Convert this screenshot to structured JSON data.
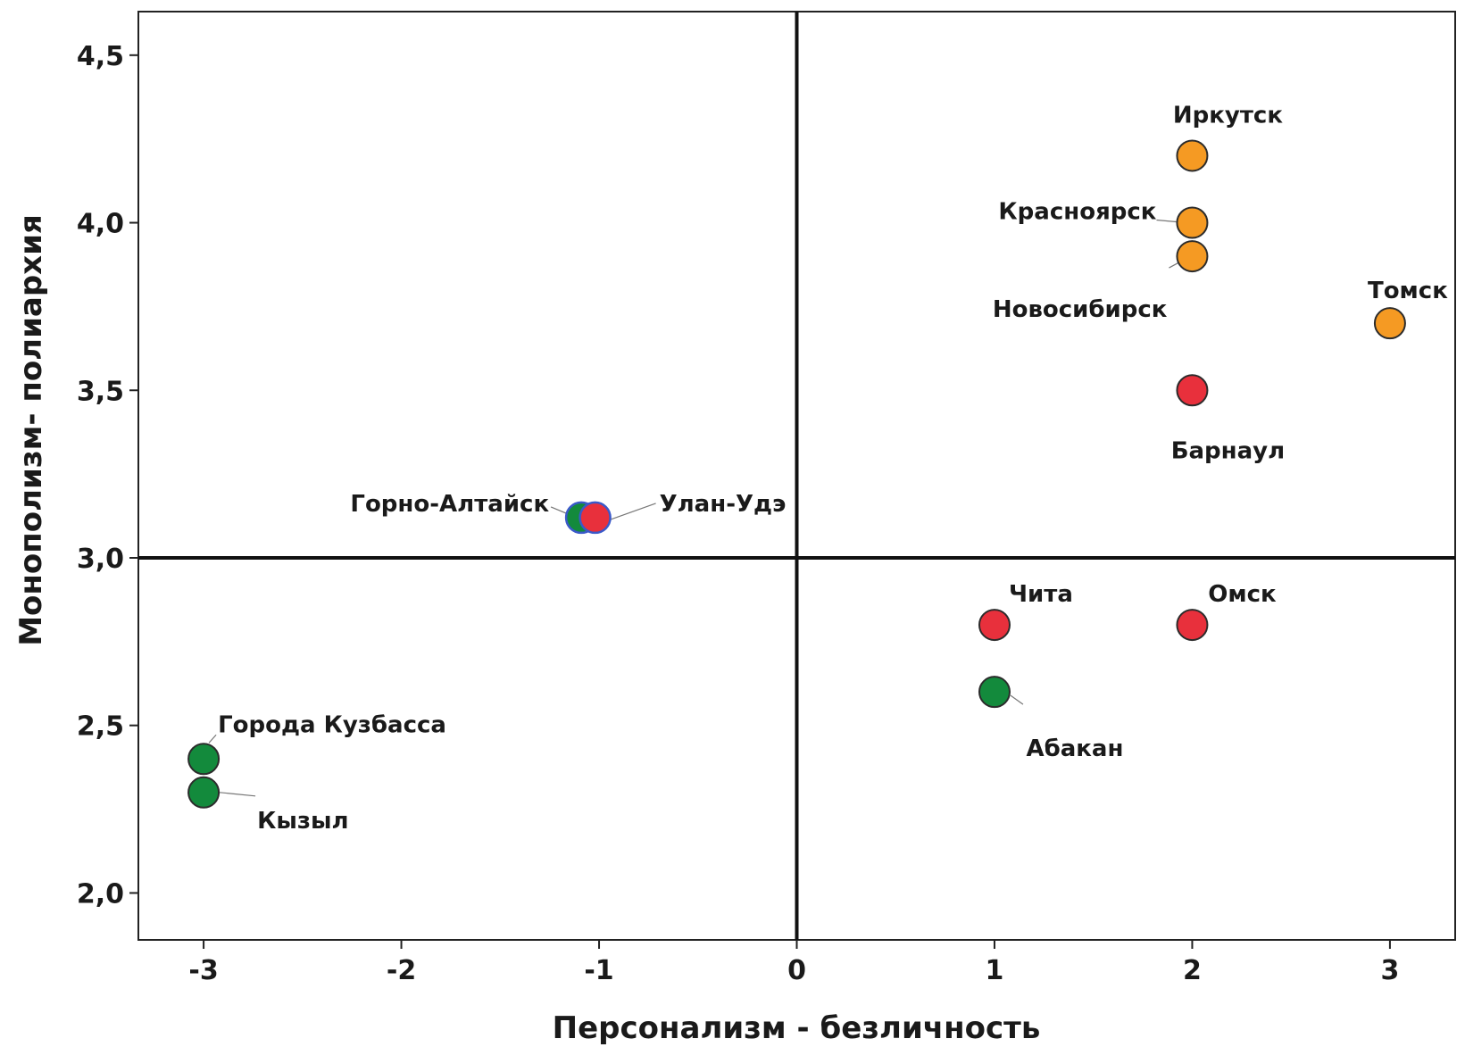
{
  "chart_data": {
    "type": "scatter",
    "xlabel": "Персонализм - безличность",
    "ylabel": "Монополизм- полиархия",
    "xlim": [
      -3.33,
      3.33
    ],
    "ylim": [
      1.86,
      4.63
    ],
    "x_ticks": [
      {
        "value": -3,
        "label": "-3"
      },
      {
        "value": -2,
        "label": "-2"
      },
      {
        "value": -1,
        "label": "-1"
      },
      {
        "value": 0,
        "label": "0"
      },
      {
        "value": 1,
        "label": "1"
      },
      {
        "value": 2,
        "label": "2"
      },
      {
        "value": 3,
        "label": "3"
      }
    ],
    "y_ticks": [
      {
        "value": 2.0,
        "label": "2,0"
      },
      {
        "value": 2.5,
        "label": "2,5"
      },
      {
        "value": 3.0,
        "label": "3,0"
      },
      {
        "value": 3.5,
        "label": "3,5"
      },
      {
        "value": 4.0,
        "label": "4,0"
      },
      {
        "value": 4.5,
        "label": "4,5"
      }
    ],
    "reference_lines": {
      "x": 0,
      "y": 3.0
    },
    "grid": false,
    "colors": {
      "orange": "#f59a23",
      "red": "#e8303c",
      "green": "#138a3c"
    },
    "points": [
      {
        "label": "Иркутск",
        "x": 2,
        "y": 4.2,
        "color": "orange"
      },
      {
        "label": "Красноярск",
        "x": 2,
        "y": 4.0,
        "color": "orange"
      },
      {
        "label": "Новосибирск",
        "x": 2,
        "y": 3.9,
        "color": "orange"
      },
      {
        "label": "Томск",
        "x": 3,
        "y": 3.7,
        "color": "orange"
      },
      {
        "label": "Барнаул",
        "x": 2,
        "y": 3.5,
        "color": "red"
      },
      {
        "label": "Горно-Алтайск",
        "x": -1.09,
        "y": 3.12,
        "color": "green"
      },
      {
        "label": "Улан-Удэ",
        "x": -1.02,
        "y": 3.12,
        "color": "red"
      },
      {
        "label": "Чита",
        "x": 1,
        "y": 2.8,
        "color": "red"
      },
      {
        "label": "Омск",
        "x": 2,
        "y": 2.8,
        "color": "red"
      },
      {
        "label": "Абакан",
        "x": 1,
        "y": 2.6,
        "color": "green"
      },
      {
        "label": "Города Кузбасса",
        "x": -3,
        "y": 2.4,
        "color": "green"
      },
      {
        "label": "Кызыл",
        "x": -3,
        "y": 2.3,
        "color": "green"
      }
    ]
  }
}
